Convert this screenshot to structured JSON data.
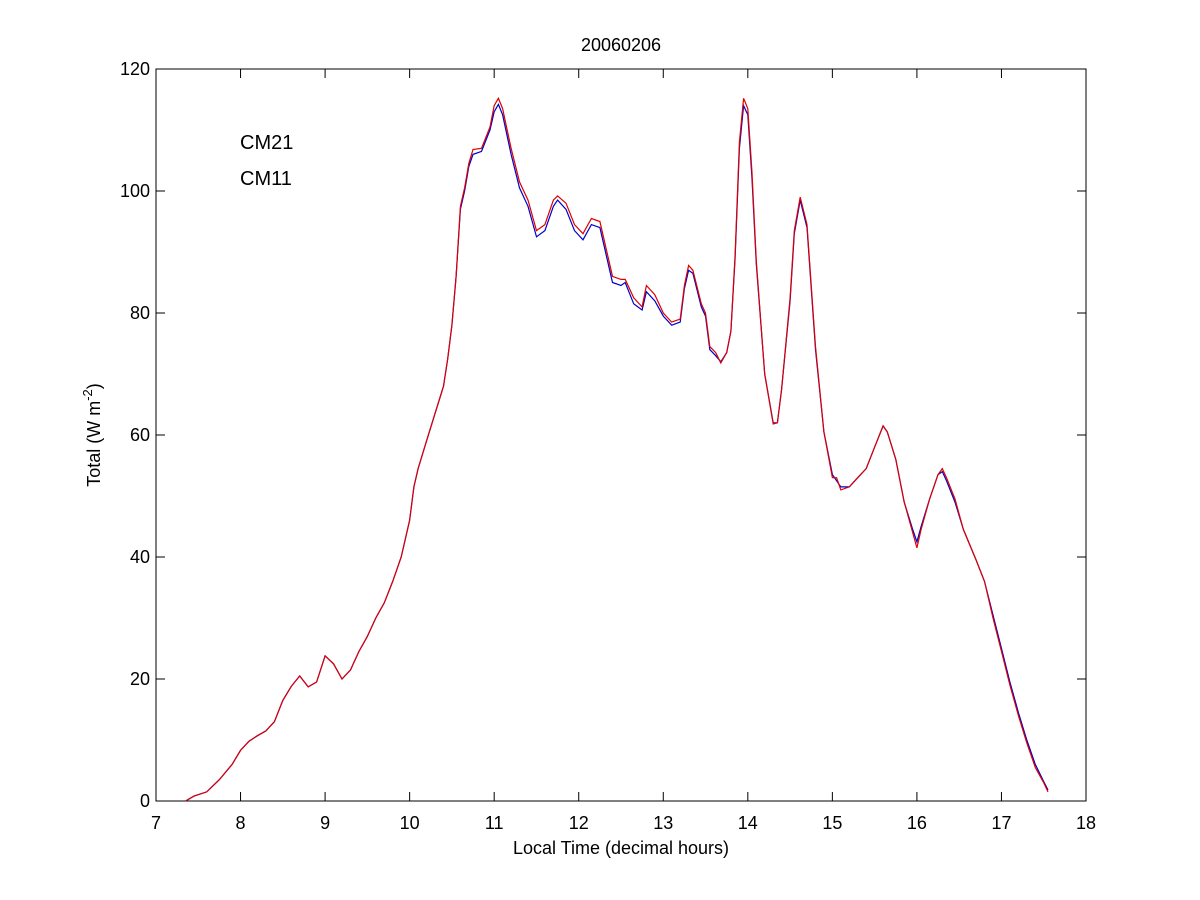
{
  "chart_data": {
    "type": "line",
    "title": "20060206",
    "xlabel": "Local Time (decimal hours)",
    "ylabel_prefix": "Total (W m",
    "ylabel_sup": "-2",
    "ylabel_suffix": ")",
    "xlim": [
      7,
      18
    ],
    "ylim": [
      0,
      120
    ],
    "xticks": [
      7,
      8,
      9,
      10,
      11,
      12,
      13,
      14,
      15,
      16,
      17,
      18
    ],
    "yticks": [
      0,
      20,
      40,
      60,
      80,
      100,
      120
    ],
    "grid": false,
    "legend_position": "top-left",
    "series": [
      {
        "name": "CM21",
        "color": "#0000cc",
        "points": [
          [
            7.35,
            0.0
          ],
          [
            7.45,
            0.8
          ],
          [
            7.6,
            1.5
          ],
          [
            7.75,
            3.5
          ],
          [
            7.9,
            6.0
          ],
          [
            8.0,
            8.3
          ],
          [
            8.1,
            9.8
          ],
          [
            8.2,
            10.7
          ],
          [
            8.3,
            11.5
          ],
          [
            8.4,
            13.0
          ],
          [
            8.5,
            16.5
          ],
          [
            8.6,
            18.8
          ],
          [
            8.7,
            20.5
          ],
          [
            8.8,
            18.7
          ],
          [
            8.9,
            19.5
          ],
          [
            9.0,
            23.8
          ],
          [
            9.1,
            22.5
          ],
          [
            9.2,
            20.0
          ],
          [
            9.3,
            21.5
          ],
          [
            9.4,
            24.5
          ],
          [
            9.5,
            27.0
          ],
          [
            9.6,
            30.0
          ],
          [
            9.7,
            32.5
          ],
          [
            9.8,
            36.0
          ],
          [
            9.9,
            40.0
          ],
          [
            10.0,
            46.0
          ],
          [
            10.05,
            51.5
          ],
          [
            10.1,
            54.5
          ],
          [
            10.2,
            59.0
          ],
          [
            10.3,
            63.5
          ],
          [
            10.4,
            68.0
          ],
          [
            10.45,
            72.5
          ],
          [
            10.5,
            78.0
          ],
          [
            10.55,
            86.0
          ],
          [
            10.6,
            97.0
          ],
          [
            10.65,
            100.0
          ],
          [
            10.7,
            104.0
          ],
          [
            10.75,
            106.0
          ],
          [
            10.85,
            106.5
          ],
          [
            10.95,
            110.0
          ],
          [
            11.0,
            113.0
          ],
          [
            11.05,
            114.2
          ],
          [
            11.1,
            112.5
          ],
          [
            11.2,
            106.0
          ],
          [
            11.3,
            100.5
          ],
          [
            11.4,
            97.5
          ],
          [
            11.5,
            92.5
          ],
          [
            11.6,
            93.5
          ],
          [
            11.7,
            97.5
          ],
          [
            11.75,
            98.5
          ],
          [
            11.85,
            97.0
          ],
          [
            11.95,
            93.5
          ],
          [
            12.05,
            92.0
          ],
          [
            12.15,
            94.5
          ],
          [
            12.25,
            94.0
          ],
          [
            12.3,
            91.0
          ],
          [
            12.4,
            85.0
          ],
          [
            12.5,
            84.5
          ],
          [
            12.55,
            85.0
          ],
          [
            12.65,
            81.5
          ],
          [
            12.75,
            80.5
          ],
          [
            12.8,
            83.5
          ],
          [
            12.9,
            82.0
          ],
          [
            13.0,
            79.5
          ],
          [
            13.1,
            78.0
          ],
          [
            13.2,
            78.5
          ],
          [
            13.25,
            84.0
          ],
          [
            13.3,
            87.0
          ],
          [
            13.35,
            86.5
          ],
          [
            13.45,
            81.0
          ],
          [
            13.5,
            79.5
          ],
          [
            13.55,
            74.0
          ],
          [
            13.62,
            73.0
          ],
          [
            13.68,
            72.0
          ],
          [
            13.75,
            73.5
          ],
          [
            13.8,
            77.0
          ],
          [
            13.85,
            89.0
          ],
          [
            13.9,
            107.0
          ],
          [
            13.95,
            114.0
          ],
          [
            14.0,
            112.5
          ],
          [
            14.05,
            102.0
          ],
          [
            14.1,
            88.0
          ],
          [
            14.2,
            70.0
          ],
          [
            14.3,
            62.0
          ],
          [
            14.35,
            62.0
          ],
          [
            14.4,
            67.5
          ],
          [
            14.5,
            82.0
          ],
          [
            14.55,
            93.0
          ],
          [
            14.62,
            98.5
          ],
          [
            14.7,
            94.0
          ],
          [
            14.8,
            74.0
          ],
          [
            14.9,
            60.5
          ],
          [
            15.0,
            53.5
          ],
          [
            15.05,
            52.5
          ],
          [
            15.1,
            51.5
          ],
          [
            15.2,
            51.5
          ],
          [
            15.3,
            53.0
          ],
          [
            15.4,
            54.5
          ],
          [
            15.5,
            58.0
          ],
          [
            15.6,
            61.5
          ],
          [
            15.65,
            60.5
          ],
          [
            15.75,
            56.0
          ],
          [
            15.85,
            49.0
          ],
          [
            15.95,
            44.5
          ],
          [
            16.0,
            42.5
          ],
          [
            16.05,
            45.0
          ],
          [
            16.15,
            49.5
          ],
          [
            16.25,
            53.5
          ],
          [
            16.3,
            54.0
          ],
          [
            16.35,
            52.5
          ],
          [
            16.45,
            49.0
          ],
          [
            16.55,
            44.5
          ],
          [
            16.7,
            39.5
          ],
          [
            16.8,
            36.0
          ],
          [
            16.9,
            30.5
          ],
          [
            17.0,
            25.0
          ],
          [
            17.1,
            19.5
          ],
          [
            17.2,
            14.5
          ],
          [
            17.3,
            10.0
          ],
          [
            17.4,
            6.0
          ],
          [
            17.5,
            3.2
          ],
          [
            17.55,
            1.8
          ]
        ]
      },
      {
        "name": "CM11",
        "color": "#dd0000",
        "points": [
          [
            7.35,
            0.0
          ],
          [
            7.45,
            0.8
          ],
          [
            7.6,
            1.5
          ],
          [
            7.75,
            3.5
          ],
          [
            7.9,
            6.0
          ],
          [
            8.0,
            8.3
          ],
          [
            8.1,
            9.8
          ],
          [
            8.2,
            10.7
          ],
          [
            8.3,
            11.5
          ],
          [
            8.4,
            13.0
          ],
          [
            8.5,
            16.5
          ],
          [
            8.6,
            18.8
          ],
          [
            8.7,
            20.5
          ],
          [
            8.8,
            18.7
          ],
          [
            8.9,
            19.5
          ],
          [
            9.0,
            23.8
          ],
          [
            9.1,
            22.5
          ],
          [
            9.2,
            20.0
          ],
          [
            9.3,
            21.5
          ],
          [
            9.4,
            24.5
          ],
          [
            9.5,
            27.0
          ],
          [
            9.6,
            30.0
          ],
          [
            9.7,
            32.5
          ],
          [
            9.8,
            36.0
          ],
          [
            9.9,
            40.0
          ],
          [
            10.0,
            46.0
          ],
          [
            10.05,
            51.5
          ],
          [
            10.1,
            54.5
          ],
          [
            10.2,
            59.0
          ],
          [
            10.3,
            63.5
          ],
          [
            10.4,
            68.0
          ],
          [
            10.45,
            72.5
          ],
          [
            10.5,
            78.0
          ],
          [
            10.55,
            86.0
          ],
          [
            10.6,
            97.5
          ],
          [
            10.65,
            100.5
          ],
          [
            10.7,
            104.5
          ],
          [
            10.75,
            106.8
          ],
          [
            10.85,
            107.0
          ],
          [
            10.95,
            110.5
          ],
          [
            11.0,
            114.0
          ],
          [
            11.05,
            115.2
          ],
          [
            11.1,
            113.5
          ],
          [
            11.2,
            107.0
          ],
          [
            11.3,
            101.5
          ],
          [
            11.4,
            98.5
          ],
          [
            11.5,
            93.5
          ],
          [
            11.6,
            94.5
          ],
          [
            11.7,
            98.5
          ],
          [
            11.75,
            99.2
          ],
          [
            11.85,
            98.0
          ],
          [
            11.95,
            94.5
          ],
          [
            12.05,
            93.0
          ],
          [
            12.15,
            95.5
          ],
          [
            12.25,
            95.0
          ],
          [
            12.3,
            92.0
          ],
          [
            12.4,
            86.0
          ],
          [
            12.5,
            85.5
          ],
          [
            12.55,
            85.5
          ],
          [
            12.65,
            82.5
          ],
          [
            12.75,
            81.0
          ],
          [
            12.8,
            84.5
          ],
          [
            12.9,
            83.0
          ],
          [
            13.0,
            80.0
          ],
          [
            13.1,
            78.5
          ],
          [
            13.2,
            79.0
          ],
          [
            13.25,
            84.5
          ],
          [
            13.3,
            87.8
          ],
          [
            13.35,
            87.0
          ],
          [
            13.45,
            81.5
          ],
          [
            13.5,
            80.0
          ],
          [
            13.55,
            74.5
          ],
          [
            13.62,
            73.5
          ],
          [
            13.68,
            71.8
          ],
          [
            13.75,
            73.5
          ],
          [
            13.8,
            77.0
          ],
          [
            13.85,
            89.5
          ],
          [
            13.9,
            108.0
          ],
          [
            13.95,
            115.2
          ],
          [
            14.0,
            113.5
          ],
          [
            14.05,
            103.0
          ],
          [
            14.1,
            88.5
          ],
          [
            14.2,
            70.0
          ],
          [
            14.3,
            61.8
          ],
          [
            14.35,
            62.0
          ],
          [
            14.4,
            67.5
          ],
          [
            14.5,
            82.5
          ],
          [
            14.55,
            93.5
          ],
          [
            14.62,
            99.0
          ],
          [
            14.7,
            94.5
          ],
          [
            14.8,
            74.5
          ],
          [
            14.9,
            60.5
          ],
          [
            15.0,
            53.0
          ],
          [
            15.05,
            53.0
          ],
          [
            15.1,
            51.0
          ],
          [
            15.2,
            51.5
          ],
          [
            15.3,
            53.0
          ],
          [
            15.4,
            54.5
          ],
          [
            15.5,
            58.0
          ],
          [
            15.6,
            61.5
          ],
          [
            15.65,
            60.5
          ],
          [
            15.75,
            56.0
          ],
          [
            15.85,
            49.0
          ],
          [
            15.95,
            44.0
          ],
          [
            16.0,
            41.5
          ],
          [
            16.05,
            44.5
          ],
          [
            16.15,
            49.5
          ],
          [
            16.25,
            53.5
          ],
          [
            16.3,
            54.5
          ],
          [
            16.35,
            53.0
          ],
          [
            16.45,
            49.5
          ],
          [
            16.55,
            44.5
          ],
          [
            16.7,
            39.5
          ],
          [
            16.8,
            36.0
          ],
          [
            16.9,
            30.0
          ],
          [
            17.0,
            24.5
          ],
          [
            17.1,
            19.0
          ],
          [
            17.2,
            14.0
          ],
          [
            17.3,
            9.5
          ],
          [
            17.4,
            5.5
          ],
          [
            17.5,
            3.0
          ],
          [
            17.55,
            1.5
          ]
        ]
      }
    ]
  }
}
